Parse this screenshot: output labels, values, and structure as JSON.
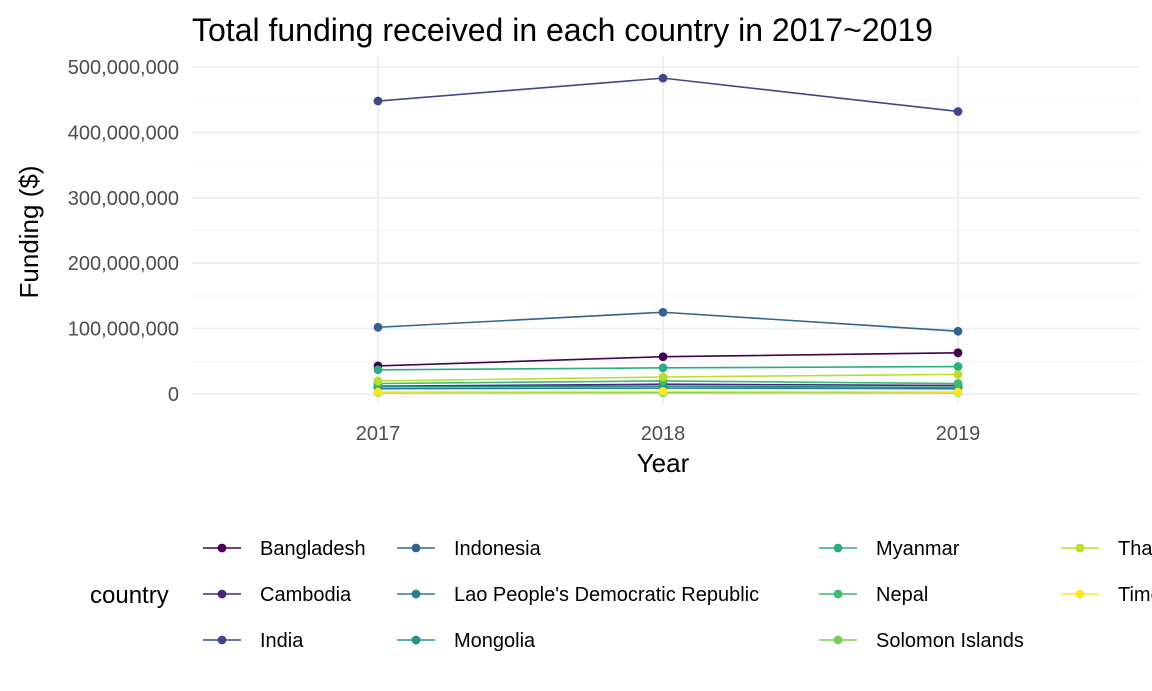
{
  "chart_data": {
    "type": "line",
    "title": "Total funding received in each country in 2017~2019",
    "xlabel": "Year",
    "ylabel": "Funding ($)",
    "x": [
      "2017",
      "2018",
      "2019"
    ],
    "ylim": [
      0,
      500000000
    ],
    "yticks": [
      0,
      100000000,
      200000000,
      300000000,
      400000000,
      500000000
    ],
    "ytick_labels": [
      "0",
      "100,000,000",
      "200,000,000",
      "300,000,000",
      "400,000,000",
      "500,000,000"
    ],
    "grid": true,
    "legend": {
      "title": "country",
      "position": "bottom"
    },
    "series": [
      {
        "name": "Bangladesh",
        "color": "#440154",
        "values": [
          43000000,
          57000000,
          63000000
        ]
      },
      {
        "name": "Cambodia",
        "color": "#482677",
        "values": [
          12000000,
          15000000,
          13000000
        ]
      },
      {
        "name": "India",
        "color": "#404788",
        "values": [
          448000000,
          483000000,
          432000000
        ]
      },
      {
        "name": "Indonesia",
        "color": "#33638d",
        "values": [
          102000000,
          125000000,
          96000000
        ]
      },
      {
        "name": "Lao People's Democratic Republic",
        "color": "#287d8e",
        "values": [
          8000000,
          9000000,
          8000000
        ]
      },
      {
        "name": "Mongolia",
        "color": "#1f968b",
        "values": [
          11000000,
          12000000,
          10000000
        ]
      },
      {
        "name": "Myanmar",
        "color": "#29af7f",
        "values": [
          37000000,
          40000000,
          42000000
        ]
      },
      {
        "name": "Nepal",
        "color": "#3cbb75",
        "values": [
          16000000,
          20000000,
          16000000
        ]
      },
      {
        "name": "Solomon Islands",
        "color": "#73d055",
        "values": [
          2000000,
          2000000,
          2000000
        ]
      },
      {
        "name": "Thailand",
        "color": "#b8de29",
        "values": [
          20000000,
          26000000,
          30000000
        ]
      },
      {
        "name": "Timor-Leste",
        "color": "#fde725",
        "values": [
          3000000,
          4000000,
          3000000
        ]
      }
    ]
  }
}
